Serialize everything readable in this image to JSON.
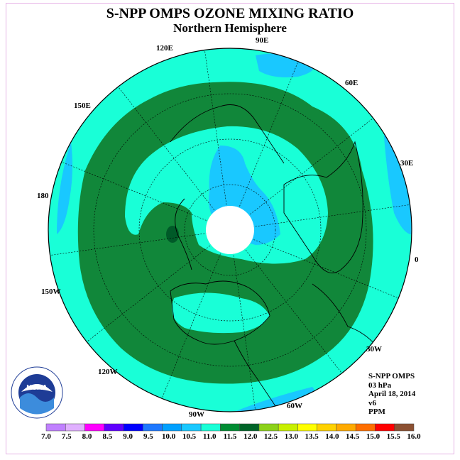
{
  "title": "S-NPP OMPS OZONE MIXING RATIO",
  "subtitle": "Northern Hemisphere",
  "longitude_labels": [
    "90E",
    "60E",
    "30E",
    "0",
    "30W",
    "60W",
    "90W",
    "120W",
    "150W",
    "180",
    "150E",
    "120E"
  ],
  "info": {
    "instrument": "S-NPP OMPS",
    "pressure": "03 hPa",
    "date": "April 18, 2014",
    "version": "v6",
    "units": "PPM"
  },
  "colorbar": {
    "ticks": [
      "7.0",
      "7.5",
      "8.0",
      "8.5",
      "9.0",
      "9.5",
      "10.0",
      "10.5",
      "11.0",
      "11.5",
      "12.0",
      "12.5",
      "13.0",
      "13.5",
      "14.0",
      "14.5",
      "15.0",
      "15.5",
      "16.0"
    ],
    "colors": [
      "#c080ff",
      "#e0b0ff",
      "#ff00ff",
      "#6000ff",
      "#0000ff",
      "#1e78ff",
      "#00a0ff",
      "#19c8ff",
      "#19ffd7",
      "#008c32",
      "#006428",
      "#8cd219",
      "#c8f000",
      "#ffff00",
      "#ffd200",
      "#ffaa00",
      "#ff6e00",
      "#ff0000",
      "#8c5032"
    ]
  },
  "palette": {
    "ring_cyan": "#19ffd7",
    "light_blue": "#19c8ff",
    "green": "#11873a",
    "dark_green": "#005a28",
    "blue": "#1e78ff",
    "polar_cap": "#ffffff"
  },
  "logo": {
    "text": "NOAA"
  }
}
